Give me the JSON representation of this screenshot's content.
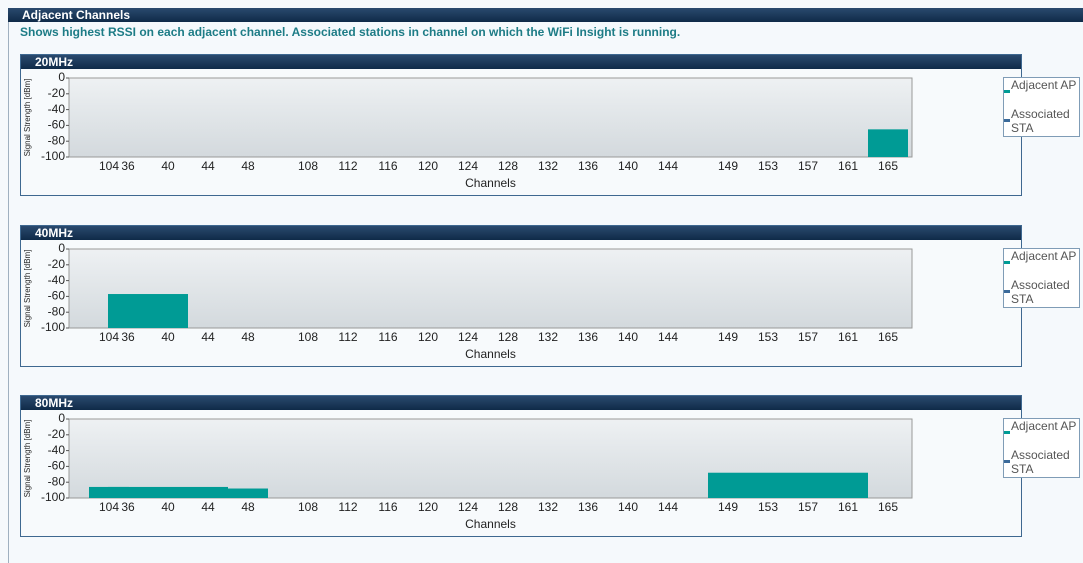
{
  "header": {
    "title": "Adjacent Channels",
    "subtitle": "Shows highest RSSI on each adjacent channel. Associated stations in channel on which the WiFi Insight is running."
  },
  "chart_data": [
    {
      "type": "bar",
      "title": "20MHz",
      "ylabel": "Signal Strength [dBm]",
      "xlabel": "Channels",
      "categories": [
        "104",
        "36",
        "40",
        "44",
        "48",
        "108",
        "112",
        "116",
        "120",
        "124",
        "128",
        "132",
        "136",
        "140",
        "144",
        "149",
        "153",
        "157",
        "161",
        "165"
      ],
      "ylim": [
        -100,
        0
      ],
      "yticks": [
        0,
        -20,
        -40,
        -60,
        -80,
        -100
      ],
      "series": [
        {
          "name": "Adjacent AP",
          "color": "#009b95",
          "values": [
            null,
            null,
            null,
            null,
            null,
            null,
            null,
            null,
            null,
            null,
            null,
            null,
            null,
            null,
            null,
            null,
            null,
            null,
            null,
            -65
          ]
        },
        {
          "name": "Associated STA",
          "color": "#3a6a9a",
          "values": [
            null,
            null,
            null,
            null,
            null,
            null,
            null,
            null,
            null,
            null,
            null,
            null,
            null,
            null,
            null,
            null,
            null,
            null,
            null,
            null
          ]
        }
      ]
    },
    {
      "type": "bar",
      "title": "40MHz",
      "ylabel": "Signal Strength [dBm]",
      "xlabel": "Channels",
      "categories": [
        "104",
        "36",
        "40",
        "44",
        "48",
        "108",
        "112",
        "116",
        "120",
        "124",
        "128",
        "132",
        "136",
        "140",
        "144",
        "149",
        "153",
        "157",
        "161",
        "165"
      ],
      "ylim": [
        -100,
        0
      ],
      "yticks": [
        0,
        -20,
        -40,
        -60,
        -80,
        -100
      ],
      "series": [
        {
          "name": "Adjacent AP",
          "color": "#009b95",
          "values": [
            null,
            -57,
            -57,
            null,
            null,
            null,
            null,
            null,
            null,
            null,
            null,
            null,
            null,
            null,
            null,
            null,
            null,
            null,
            null,
            null
          ]
        },
        {
          "name": "Associated STA",
          "color": "#3a6a9a",
          "values": [
            null,
            null,
            null,
            null,
            null,
            null,
            null,
            null,
            null,
            null,
            null,
            null,
            null,
            null,
            null,
            null,
            null,
            null,
            null,
            null
          ]
        }
      ]
    },
    {
      "type": "bar",
      "title": "80MHz",
      "ylabel": "Signal Strength [dBm]",
      "xlabel": "Channels",
      "categories": [
        "104",
        "36",
        "40",
        "44",
        "48",
        "108",
        "112",
        "116",
        "120",
        "124",
        "128",
        "132",
        "136",
        "140",
        "144",
        "149",
        "153",
        "157",
        "161",
        "165"
      ],
      "ylim": [
        -100,
        0
      ],
      "yticks": [
        0,
        -20,
        -40,
        -60,
        -80,
        -100
      ],
      "series": [
        {
          "name": "Adjacent AP",
          "color": "#009b95",
          "values": [
            -86,
            -86,
            -86,
            -86,
            -88,
            null,
            null,
            null,
            null,
            null,
            null,
            null,
            null,
            null,
            null,
            -68,
            -68,
            -68,
            -68,
            null
          ]
        },
        {
          "name": "Associated STA",
          "color": "#3a6a9a",
          "values": [
            null,
            null,
            null,
            null,
            null,
            null,
            null,
            null,
            null,
            null,
            null,
            null,
            null,
            null,
            null,
            null,
            null,
            null,
            null,
            null
          ]
        }
      ]
    }
  ]
}
